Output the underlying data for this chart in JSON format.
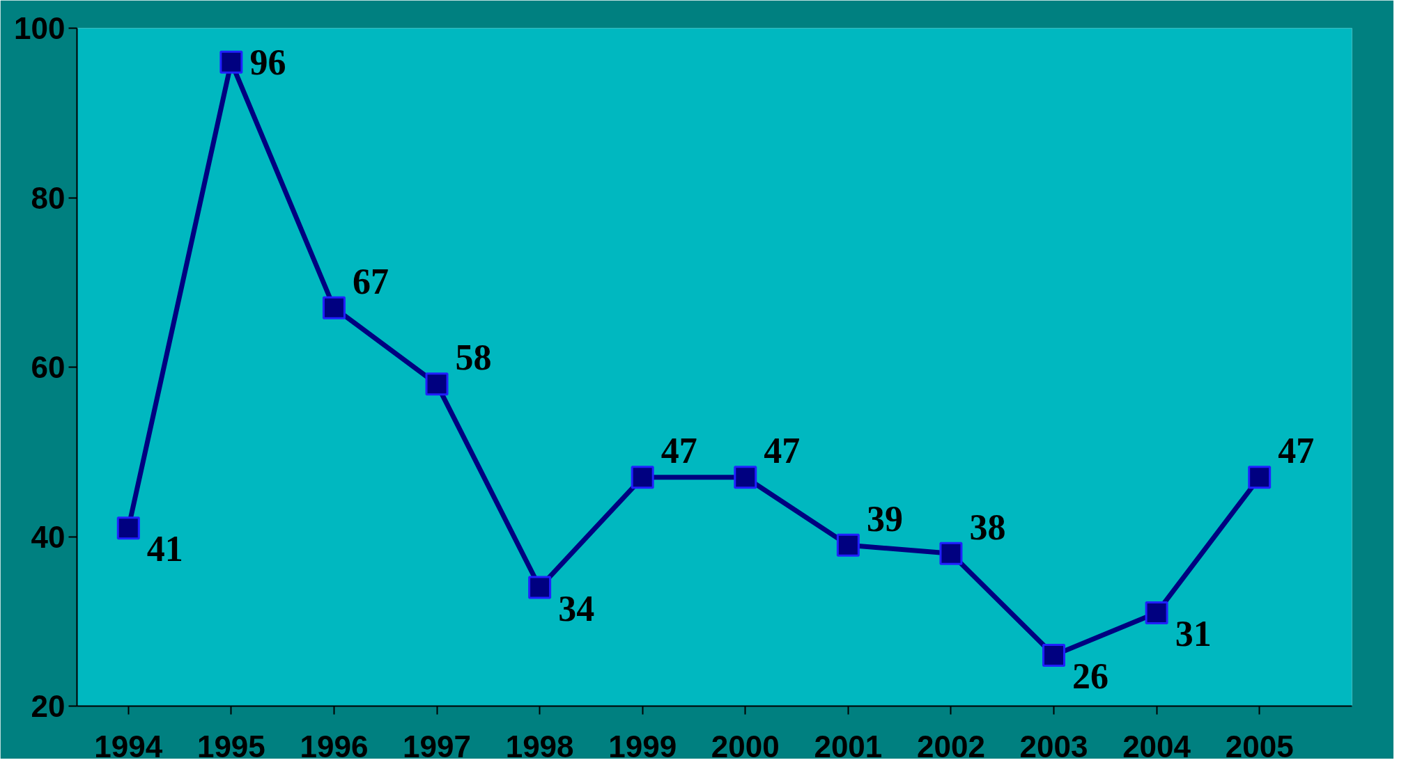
{
  "chart_data": {
    "type": "line",
    "categories": [
      "1994",
      "1995",
      "1996",
      "1997",
      "1998",
      "1999",
      "2000",
      "2001",
      "2002",
      "2003",
      "2004",
      "2005"
    ],
    "series": [
      {
        "color": "#000080",
        "values": [
          41,
          96,
          67,
          58,
          34,
          47,
          47,
          39,
          38,
          26,
          31,
          47
        ]
      }
    ],
    "ylim": [
      20,
      100
    ],
    "yticks": [
      20,
      40,
      60,
      80,
      100
    ],
    "grid": false,
    "marker": "square",
    "line_style": "solid",
    "data_labels": true
  }
}
